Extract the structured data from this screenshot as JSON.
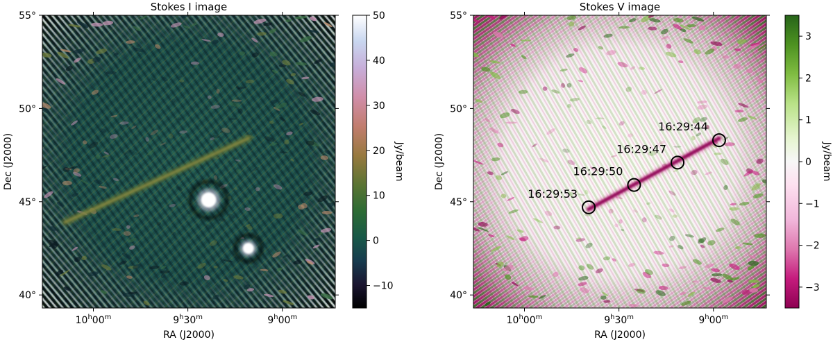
{
  "chart_data": [
    {
      "type": "heatmap",
      "title": "Stokes I image",
      "xlabel": "RA (J2000)",
      "ylabel": "Dec (J2000)",
      "x_ticks": [
        {
          "base": "10",
          "unit1": "h",
          "mins": "00",
          "unit2": "m"
        },
        {
          "base": "9",
          "unit1": "h",
          "mins": "30",
          "unit2": "m"
        },
        {
          "base": "9",
          "unit1": "h",
          "mins": "00",
          "unit2": "m"
        }
      ],
      "x_tick_values_hours": [
        10.0,
        9.5,
        9.0
      ],
      "xlim_hours": [
        10.27,
        8.72
      ],
      "y_ticks": [
        "40°",
        "45°",
        "50°",
        "55°"
      ],
      "y_tick_values": [
        40,
        45,
        50,
        55
      ],
      "ylim": [
        39.3,
        55.0
      ],
      "colorbar": {
        "label": "Jy/beam",
        "ticks": [
          "−10",
          "0",
          "10",
          "20",
          "30",
          "40",
          "50"
        ],
        "tick_values": [
          -10,
          0,
          10,
          20,
          30,
          40,
          50
        ],
        "range": [
          -15,
          50
        ],
        "colormap": "cubehelix"
      },
      "features": {
        "track_start": {
          "ra_h": 10.15,
          "dec": 43.9
        },
        "track_end": {
          "ra_h": 9.18,
          "dec": 48.4
        },
        "bright_sources": [
          {
            "ra_h": 9.39,
            "dec": 45.1
          },
          {
            "ra_h": 9.18,
            "dec": 42.5
          }
        ]
      }
    },
    {
      "type": "heatmap",
      "title": "Stokes V image",
      "xlabel": "RA (J2000)",
      "ylabel": "Dec (J2000)",
      "x_ticks": [
        {
          "base": "10",
          "unit1": "h",
          "mins": "00",
          "unit2": "m"
        },
        {
          "base": "9",
          "unit1": "h",
          "mins": "30",
          "unit2": "m"
        },
        {
          "base": "9",
          "unit1": "h",
          "mins": "00",
          "unit2": "m"
        }
      ],
      "x_tick_values_hours": [
        10.0,
        9.5,
        9.0
      ],
      "xlim_hours": [
        10.27,
        8.72
      ],
      "y_ticks": [
        "40°",
        "45°",
        "50°",
        "55°"
      ],
      "y_tick_values": [
        40,
        45,
        50,
        55
      ],
      "ylim": [
        39.3,
        55.0
      ],
      "colorbar": {
        "label": "Jy/beam",
        "ticks": [
          "−3",
          "−2",
          "−1",
          "0",
          "1",
          "2",
          "3"
        ],
        "tick_values": [
          -3,
          -2,
          -1,
          0,
          1,
          2,
          3
        ],
        "range": [
          -3.5,
          3.5
        ],
        "colormap": "PiYG"
      },
      "annotations": [
        {
          "text": "16:29:53",
          "ra_h": 9.66,
          "dec": 44.7
        },
        {
          "text": "16:29:50",
          "ra_h": 9.42,
          "dec": 45.9
        },
        {
          "text": "16:29:47",
          "ra_h": 9.19,
          "dec": 47.1
        },
        {
          "text": "16:29:44",
          "ra_h": 8.97,
          "dec": 48.3
        }
      ],
      "features": {
        "track_start": {
          "ra_h": 9.66,
          "dec": 44.6
        },
        "track_end": {
          "ra_h": 8.97,
          "dec": 48.4
        }
      }
    }
  ]
}
